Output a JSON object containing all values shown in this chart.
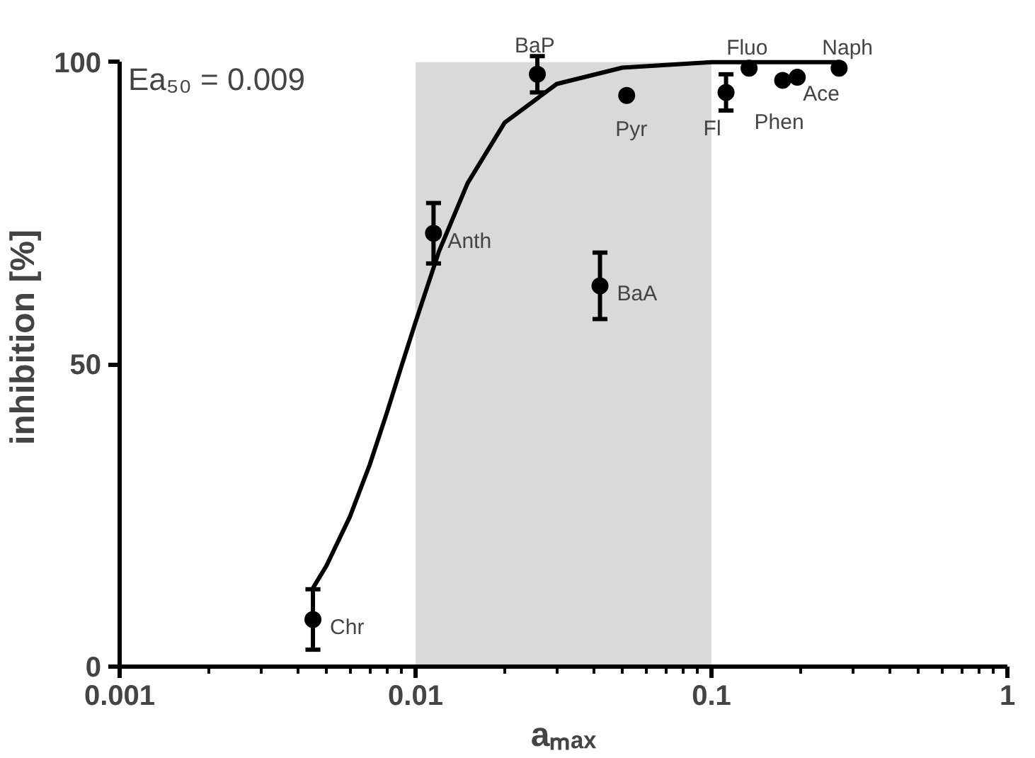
{
  "chart_data": {
    "type": "scatter",
    "xlabel": "aₘₐₓ",
    "ylabel": "inhibition [%]",
    "log": "x",
    "xlim": [
      0.001,
      1
    ],
    "xticks": [
      0.001,
      0.01,
      0.1,
      1
    ],
    "ylim": [
      0,
      100
    ],
    "yticks": [
      0,
      50,
      100
    ],
    "grid": false,
    "series": [
      {
        "type": "scatter",
        "marker": "circle",
        "color": "#000000",
        "x": [
          0.0045,
          0.0115,
          0.0258,
          0.042,
          0.0517,
          0.112,
          0.134,
          0.174,
          0.195,
          0.27
        ],
        "values": [
          7.8,
          71.7,
          98,
          63,
          94.5,
          95,
          99,
          97,
          97.5,
          99
        ],
        "errors": [
          5,
          5,
          3,
          5.5,
          null,
          3,
          null,
          null,
          null,
          null
        ]
      },
      {
        "type": "line",
        "color": "#000000",
        "x": [
          0.0045,
          0.005,
          0.006,
          0.007,
          0.008,
          0.009,
          0.01,
          0.012,
          0.015,
          0.02,
          0.03,
          0.05,
          0.1,
          0.27
        ],
        "values": [
          13,
          16.7,
          24.8,
          33.4,
          42,
          50,
          57,
          68.7,
          80,
          90,
          96.4,
          99.1,
          100,
          100
        ]
      }
    ],
    "bands": [
      {
        "axis": "x",
        "from": 0.01,
        "to": 0.1,
        "color": "#d9d9d9"
      }
    ],
    "annotations": [
      "Ea₅₀ = 0.009",
      {
        "text": "Chr",
        "x": 0.0045,
        "y": 7.8
      },
      {
        "text": "Anth",
        "x": 0.0115,
        "y": 71.7
      },
      {
        "text": "BaP",
        "x": 0.0258,
        "y": 98
      },
      {
        "text": "BaA",
        "x": 0.042,
        "y": 63
      },
      {
        "text": "Pyr",
        "x": 0.0517,
        "y": 94.5
      },
      {
        "text": "Fl",
        "x": 0.112,
        "y": 95
      },
      {
        "text": "Fluo",
        "x": 0.134,
        "y": 99
      },
      {
        "text": "Phen",
        "x": 0.174,
        "y": 97
      },
      {
        "text": "Ace",
        "x": 0.195,
        "y": 97.5
      },
      {
        "text": "Naph",
        "x": 0.27,
        "y": 99
      }
    ]
  }
}
